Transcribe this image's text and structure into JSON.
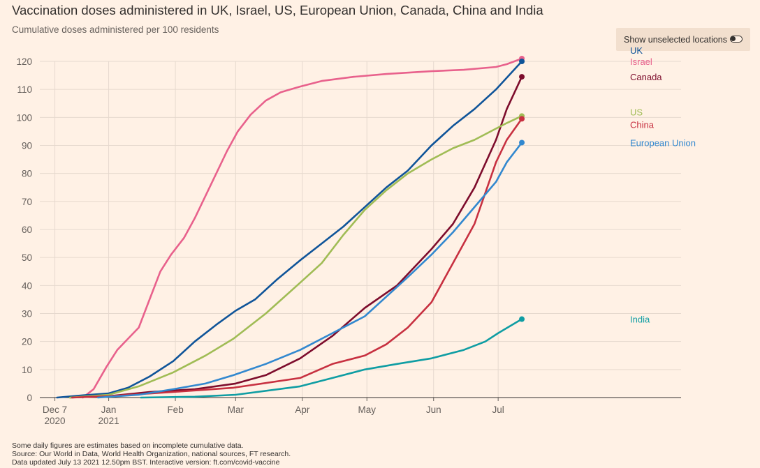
{
  "header": {
    "title": "Vaccination doses administered in UK, Israel, US, European Union, Canada, China and India",
    "subtitle": "Cumulative doses administered per 100 residents"
  },
  "toggle": {
    "label": "Show unselected locations",
    "state": "on"
  },
  "footer": {
    "note": "Some daily figures are estimates based on incomplete cumulative data.",
    "source": "Source: Our World in Data, World Health Organization, national sources, FT research.",
    "updated": "Data updated July 13 2021 12.50pm BST. Interactive version: ft.com/covid-vaccine"
  },
  "chart_data": {
    "type": "line",
    "title": "Vaccination doses administered in UK, Israel, US, European Union, Canada, China and India",
    "subtitle": "Cumulative doses administered per 100 residents",
    "xlabel": "",
    "ylabel": "",
    "ylim": [
      0,
      120
    ],
    "yticks": [
      0,
      10,
      20,
      30,
      40,
      50,
      60,
      70,
      80,
      90,
      100,
      110,
      120
    ],
    "xlim": [
      "2020-11-30",
      "2021-09-24"
    ],
    "xticks": [
      {
        "date": "2020-12-07",
        "line1": "Dec 7",
        "line2": "2020"
      },
      {
        "date": "2021-01-01",
        "line1": "Jan",
        "line2": "2021"
      },
      {
        "date": "2021-02-01",
        "line1": "Feb",
        "line2": ""
      },
      {
        "date": "2021-03-01",
        "line1": "Mar",
        "line2": ""
      },
      {
        "date": "2021-04-01",
        "line1": "Apr",
        "line2": ""
      },
      {
        "date": "2021-05-01",
        "line1": "May",
        "line2": ""
      },
      {
        "date": "2021-06-01",
        "line1": "Jun",
        "line2": ""
      },
      {
        "date": "2021-07-01",
        "line1": "Jul",
        "line2": ""
      }
    ],
    "grid": true,
    "legend": "inline labels at line ends",
    "series": [
      {
        "name": "Israel",
        "color": "#E8618C",
        "label_y": 120,
        "points": [
          [
            "2020-12-20",
            0
          ],
          [
            "2020-12-25",
            3
          ],
          [
            "2020-12-31",
            11
          ],
          [
            "2021-01-05",
            17
          ],
          [
            "2021-01-10",
            21
          ],
          [
            "2021-01-15",
            25
          ],
          [
            "2021-01-20",
            35
          ],
          [
            "2021-01-25",
            45
          ],
          [
            "2021-01-30",
            51
          ],
          [
            "2021-02-05",
            57
          ],
          [
            "2021-02-10",
            64
          ],
          [
            "2021-02-15",
            72
          ],
          [
            "2021-02-20",
            80
          ],
          [
            "2021-02-25",
            88
          ],
          [
            "2021-03-02",
            95
          ],
          [
            "2021-03-08",
            101
          ],
          [
            "2021-03-15",
            106
          ],
          [
            "2021-03-22",
            109
          ],
          [
            "2021-03-31",
            111
          ],
          [
            "2021-04-10",
            113
          ],
          [
            "2021-04-25",
            114.5
          ],
          [
            "2021-05-10",
            115.5
          ],
          [
            "2021-05-31",
            116.5
          ],
          [
            "2021-06-15",
            117
          ],
          [
            "2021-06-30",
            118
          ],
          [
            "2021-07-05",
            119
          ],
          [
            "2021-07-12",
            121
          ]
        ]
      },
      {
        "name": "UK",
        "color": "#0F5499",
        "label_y": 124,
        "points": [
          [
            "2020-12-08",
            0
          ],
          [
            "2020-12-20",
            0.8
          ],
          [
            "2021-01-01",
            1.5
          ],
          [
            "2021-01-10",
            3.5
          ],
          [
            "2021-01-20",
            7.5
          ],
          [
            "2021-01-31",
            13
          ],
          [
            "2021-02-10",
            20
          ],
          [
            "2021-02-20",
            26
          ],
          [
            "2021-03-01",
            31
          ],
          [
            "2021-03-10",
            35
          ],
          [
            "2021-03-20",
            42
          ],
          [
            "2021-03-31",
            49
          ],
          [
            "2021-04-10",
            55
          ],
          [
            "2021-04-20",
            61
          ],
          [
            "2021-04-30",
            68
          ],
          [
            "2021-05-10",
            75
          ],
          [
            "2021-05-20",
            81
          ],
          [
            "2021-05-31",
            90
          ],
          [
            "2021-06-10",
            97
          ],
          [
            "2021-06-20",
            103
          ],
          [
            "2021-06-30",
            110
          ],
          [
            "2021-07-12",
            120
          ]
        ]
      },
      {
        "name": "Canada",
        "color": "#7D0C2C",
        "label_y": 114.5,
        "points": [
          [
            "2020-12-14",
            0
          ],
          [
            "2021-01-01",
            0.5
          ],
          [
            "2021-01-20",
            2
          ],
          [
            "2021-02-10",
            3
          ],
          [
            "2021-03-01",
            5
          ],
          [
            "2021-03-15",
            8
          ],
          [
            "2021-03-31",
            14
          ],
          [
            "2021-04-15",
            22
          ],
          [
            "2021-04-30",
            32
          ],
          [
            "2021-05-15",
            40
          ],
          [
            "2021-05-31",
            53
          ],
          [
            "2021-06-10",
            62
          ],
          [
            "2021-06-20",
            75
          ],
          [
            "2021-06-30",
            92
          ],
          [
            "2021-07-05",
            103
          ],
          [
            "2021-07-12",
            114.5
          ]
        ]
      },
      {
        "name": "US",
        "color": "#A0BC55",
        "label_y": 102,
        "points": [
          [
            "2020-12-14",
            0
          ],
          [
            "2021-01-01",
            1
          ],
          [
            "2021-01-15",
            4
          ],
          [
            "2021-01-31",
            9
          ],
          [
            "2021-02-15",
            15
          ],
          [
            "2021-02-28",
            21
          ],
          [
            "2021-03-15",
            30
          ],
          [
            "2021-03-31",
            41
          ],
          [
            "2021-04-10",
            48
          ],
          [
            "2021-04-20",
            58
          ],
          [
            "2021-04-30",
            67
          ],
          [
            "2021-05-10",
            74
          ],
          [
            "2021-05-20",
            80
          ],
          [
            "2021-05-31",
            85
          ],
          [
            "2021-06-10",
            89
          ],
          [
            "2021-06-20",
            92
          ],
          [
            "2021-06-30",
            96
          ],
          [
            "2021-07-05",
            98
          ],
          [
            "2021-07-12",
            100.5
          ]
        ]
      },
      {
        "name": "China",
        "color": "#C73040",
        "label_y": 97.5,
        "points": [
          [
            "2020-12-15",
            0
          ],
          [
            "2021-01-01",
            0.5
          ],
          [
            "2021-01-31",
            2
          ],
          [
            "2021-02-28",
            3.5
          ],
          [
            "2021-03-31",
            7
          ],
          [
            "2021-04-15",
            12
          ],
          [
            "2021-04-30",
            15
          ],
          [
            "2021-05-10",
            19
          ],
          [
            "2021-05-20",
            25
          ],
          [
            "2021-05-31",
            34
          ],
          [
            "2021-06-10",
            48
          ],
          [
            "2021-06-20",
            62
          ],
          [
            "2021-06-30",
            84
          ],
          [
            "2021-07-05",
            92
          ],
          [
            "2021-07-12",
            99.5
          ]
        ]
      },
      {
        "name": "European Union",
        "color": "#3288CF",
        "label_y": 91,
        "points": [
          [
            "2020-12-27",
            0
          ],
          [
            "2021-01-15",
            1
          ],
          [
            "2021-01-31",
            3
          ],
          [
            "2021-02-15",
            5
          ],
          [
            "2021-02-28",
            8
          ],
          [
            "2021-03-15",
            12
          ],
          [
            "2021-03-31",
            17
          ],
          [
            "2021-04-15",
            23
          ],
          [
            "2021-04-30",
            29
          ],
          [
            "2021-05-10",
            36
          ],
          [
            "2021-05-20",
            43
          ],
          [
            "2021-05-31",
            51
          ],
          [
            "2021-06-10",
            59
          ],
          [
            "2021-06-20",
            68
          ],
          [
            "2021-06-30",
            77
          ],
          [
            "2021-07-05",
            84
          ],
          [
            "2021-07-12",
            91
          ]
        ]
      },
      {
        "name": "India",
        "color": "#0F9DA3",
        "label_y": 28,
        "points": [
          [
            "2021-01-16",
            0
          ],
          [
            "2021-02-10",
            0.3
          ],
          [
            "2021-03-01",
            1
          ],
          [
            "2021-03-31",
            4
          ],
          [
            "2021-04-15",
            7
          ],
          [
            "2021-04-30",
            10
          ],
          [
            "2021-05-15",
            12
          ],
          [
            "2021-05-31",
            14
          ],
          [
            "2021-06-15",
            17
          ],
          [
            "2021-06-25",
            20
          ],
          [
            "2021-07-01",
            23
          ],
          [
            "2021-07-12",
            28
          ]
        ]
      }
    ]
  }
}
